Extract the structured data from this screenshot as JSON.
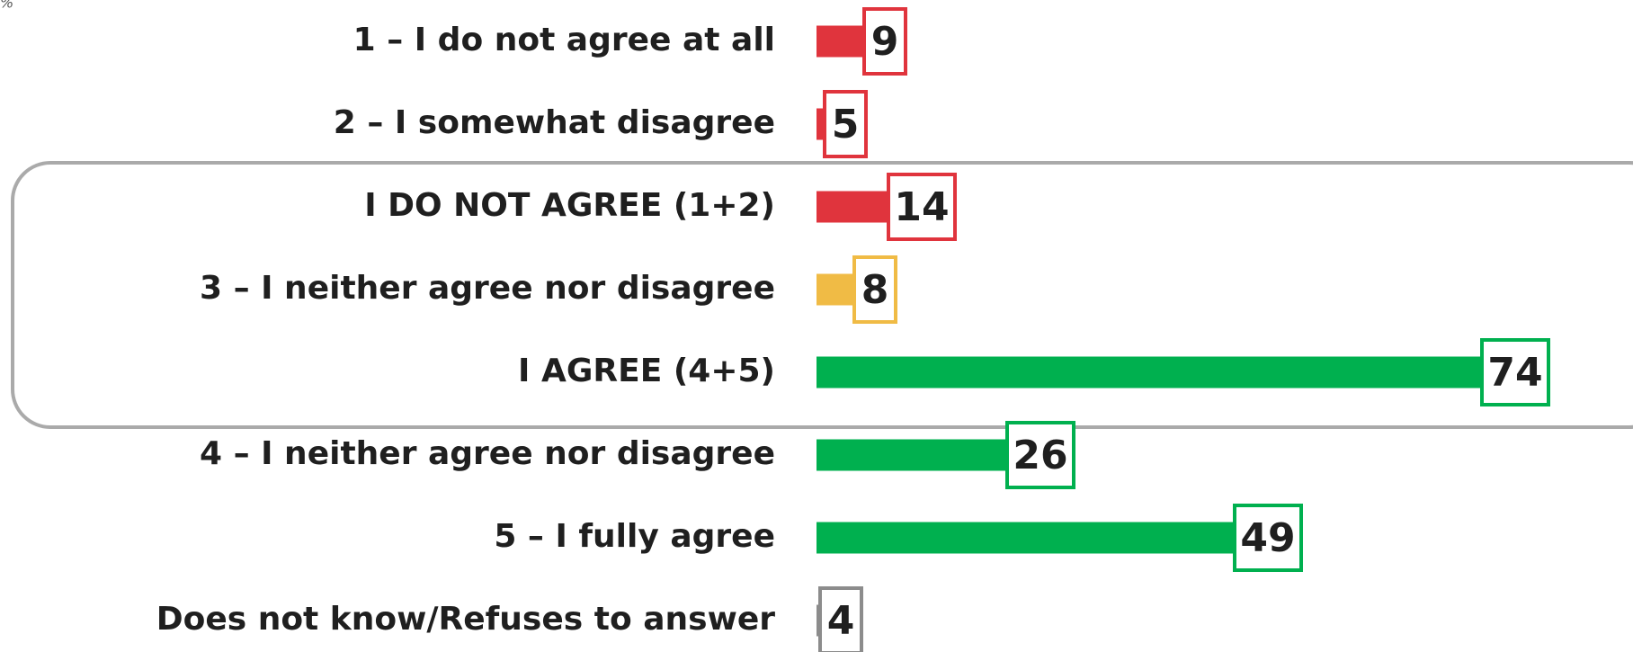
{
  "chart_data": {
    "type": "bar",
    "orientation": "horizontal",
    "unit": "%",
    "categories": [
      "1 – I do not agree at all",
      "2 – I somewhat disagree",
      "I DO NOT AGREE (1+2)",
      "3 – I neither agree nor disagree",
      "I AGREE (4+5)",
      "4 – I neither agree nor disagree",
      "5 – I fully agree",
      "Does not know/Refuses to answer"
    ],
    "values": [
      9,
      5,
      14,
      8,
      74,
      26,
      49,
      4
    ],
    "colors": [
      "#e0343d",
      "#e0343d",
      "#e0343d",
      "#f0bb45",
      "#00b04f",
      "#00b04f",
      "#00b04f",
      "#8c8c8c"
    ]
  }
}
